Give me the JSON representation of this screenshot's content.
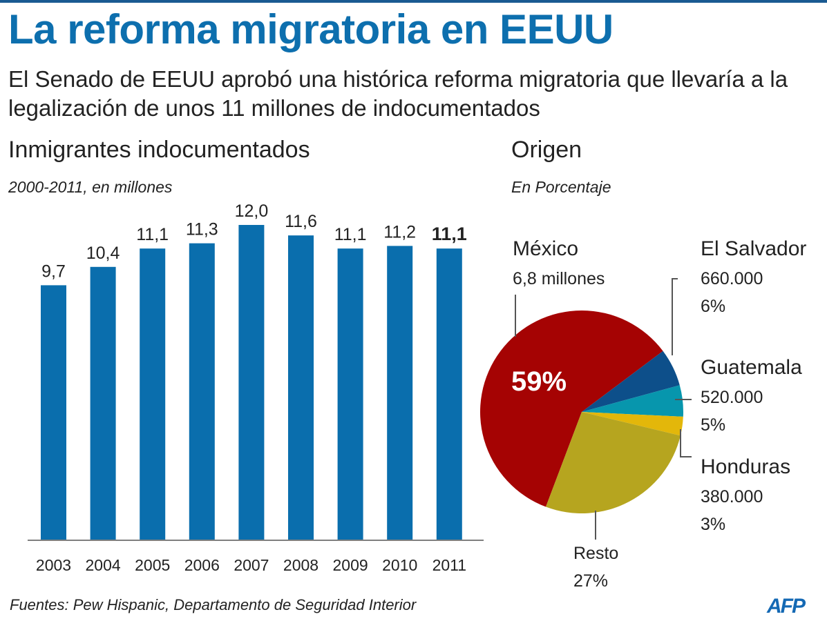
{
  "title": "La reforma migratoria en EEUU",
  "subtitle": "El Senado de EEUU aprobó una histórica reforma migratoria que llevaría a la legalización de unos 11 millones de indocumentados",
  "source": "Fuentes: Pew Hispanic, Departamento de Seguridad Interior",
  "logo": "AFP",
  "chart_data": [
    {
      "type": "bar",
      "title": "Inmigrantes indocumentados",
      "subtitle": "2000-2011, en millones",
      "categories": [
        "2003",
        "2004",
        "2005",
        "2006",
        "2007",
        "2008",
        "2009",
        "2010",
        "2011"
      ],
      "values": [
        9.7,
        10.4,
        11.1,
        11.3,
        12.0,
        11.6,
        11.1,
        11.2,
        11.1
      ],
      "data_labels": [
        "9,7",
        "10,4",
        "11,1",
        "11,3",
        "12,0",
        "11,6",
        "11,1",
        "11,2",
        "11,1"
      ],
      "highlight_last_label": true,
      "ylim": [
        0,
        12.5
      ],
      "color": "#0a6ead",
      "grid": false
    },
    {
      "type": "pie",
      "title": "Origen",
      "subtitle": "En Porcentaje",
      "slices": [
        {
          "name": "México",
          "detail": "6,8 millones",
          "label": "59%",
          "value": 59,
          "color": "#a50303"
        },
        {
          "name": "El Salvador",
          "detail": "660.000",
          "label": "6%",
          "value": 6,
          "color": "#0d4f8a"
        },
        {
          "name": "Guatemala",
          "detail": "520.000",
          "label": "5%",
          "value": 5,
          "color": "#0796ad"
        },
        {
          "name": "Honduras",
          "detail": "380.000",
          "label": "3%",
          "value": 3,
          "color": "#e3b70a"
        },
        {
          "name": "Resto",
          "detail": "",
          "label": "27%",
          "value": 27,
          "color": "#b6a51f"
        }
      ]
    }
  ]
}
